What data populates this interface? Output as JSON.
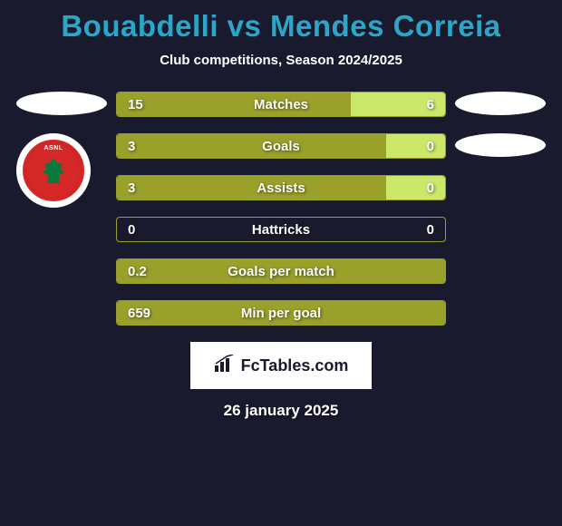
{
  "background_color": "#1a1a2e",
  "title": "Bouabdelli vs Mendes Correia",
  "title_color": "#2aa6c9",
  "subtitle": "Club competitions, Season 2024/2025",
  "subtitle_color": "#ffffff",
  "left_accent": "#9aa12b",
  "right_accent": "#cbe86b",
  "stat_text_color": "#ffffff",
  "oval_color": "#ffffff",
  "date": "26 january 2025",
  "date_color": "#ffffff",
  "branding": {
    "text": "FcTables.com",
    "bg": "#ffffff",
    "text_color": "#1a1a2e"
  },
  "stats": [
    {
      "label": "Matches",
      "left_val": "15",
      "right_val": "6",
      "left_pct": 71.4,
      "right_pct": 28.6
    },
    {
      "label": "Goals",
      "left_val": "3",
      "right_val": "0",
      "left_pct": 82,
      "right_pct": 18
    },
    {
      "label": "Assists",
      "left_val": "3",
      "right_val": "0",
      "left_pct": 82,
      "right_pct": 18
    },
    {
      "label": "Hattricks",
      "left_val": "0",
      "right_val": "0",
      "left_pct": 0,
      "right_pct": 0
    },
    {
      "label": "Goals per match",
      "left_val": "0.2",
      "right_val": "",
      "left_pct": 100,
      "right_pct": 0
    },
    {
      "label": "Min per goal",
      "left_val": "659",
      "right_val": "",
      "left_pct": 100,
      "right_pct": 0
    }
  ]
}
